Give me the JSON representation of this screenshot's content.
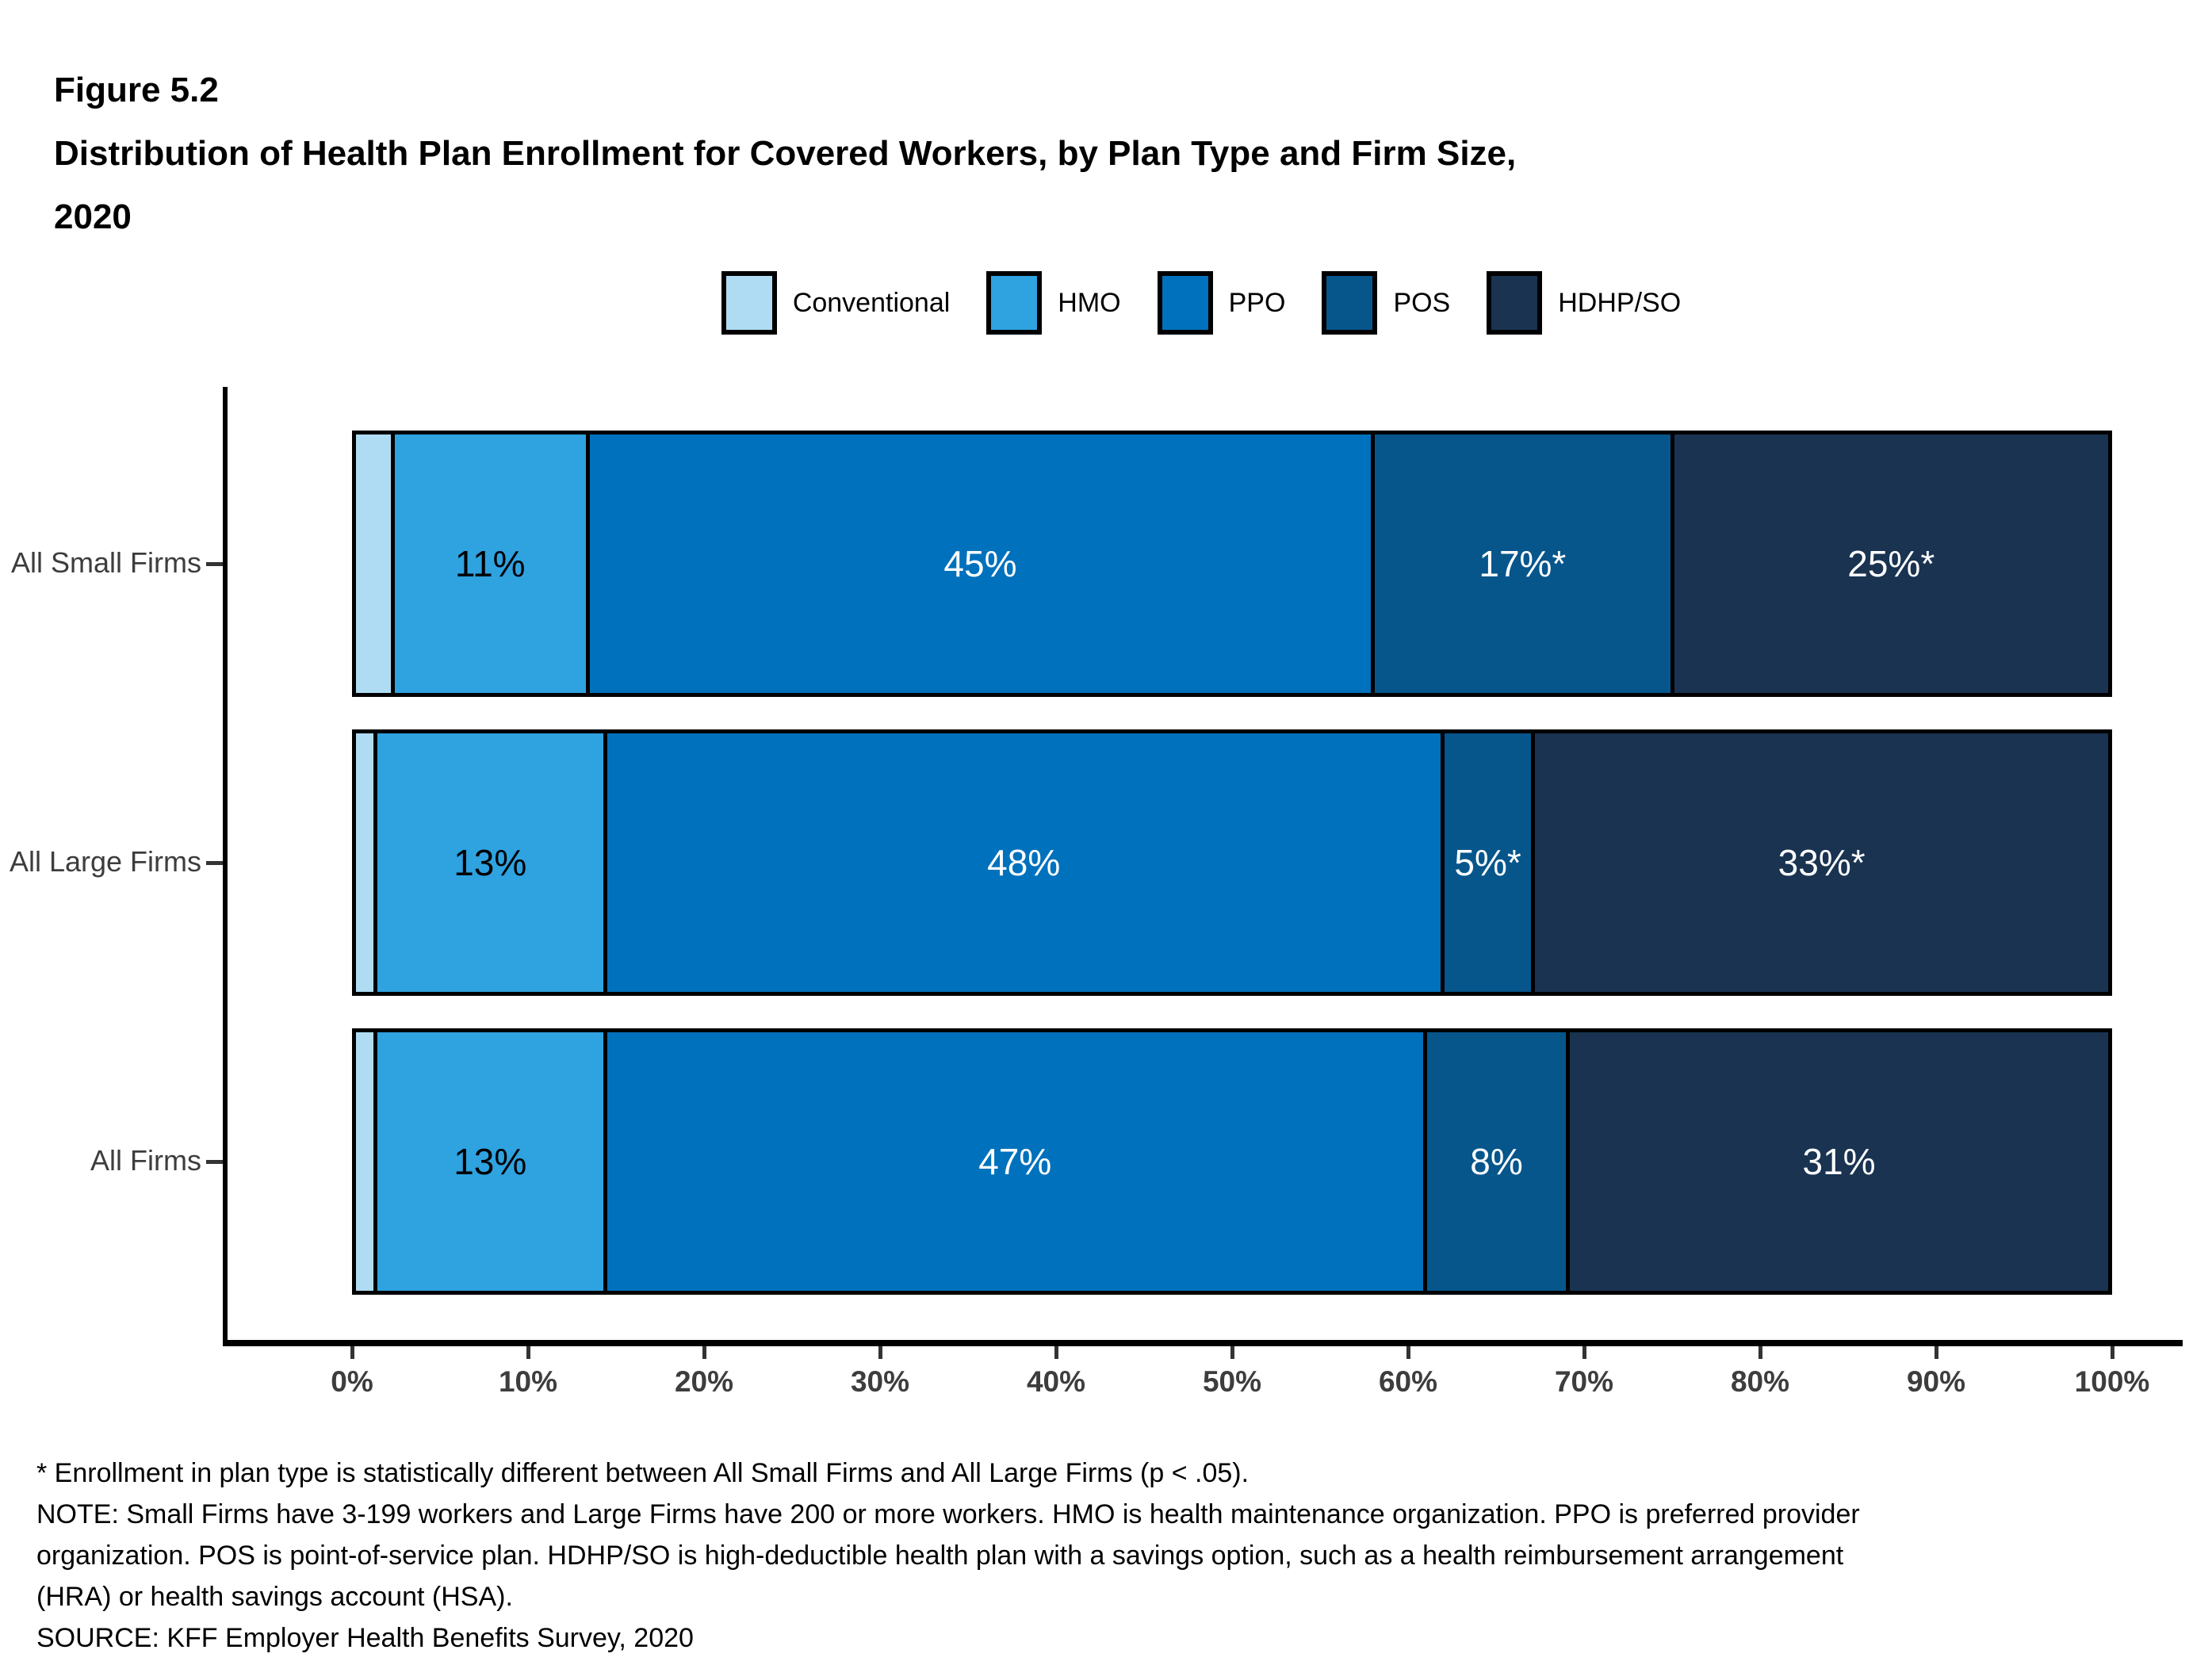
{
  "header": {
    "figure_label": "Figure 5.2",
    "title_lines": [
      "Distribution of Health Plan Enrollment for Covered Workers, by Plan Type and Firm Size,",
      "2020"
    ]
  },
  "legend": {
    "items": [
      {
        "label": "Conventional",
        "color": "#AFDCF2"
      },
      {
        "label": "HMO",
        "color": "#2FA2E0"
      },
      {
        "label": "PPO",
        "color": "#0071BC"
      },
      {
        "label": "POS",
        "color": "#06568C"
      },
      {
        "label": "HDHP/SO",
        "color": "#193351"
      }
    ]
  },
  "chart_data": {
    "type": "bar",
    "orientation": "horizontal",
    "stacked": true,
    "grid": false,
    "legend_position": "top",
    "categories": [
      "All Small Firms",
      "All Large Firms",
      "All Firms"
    ],
    "series": [
      {
        "name": "Conventional",
        "color": "#AFDCF2",
        "label_color": "#000000",
        "values": [
          2,
          1,
          1
        ],
        "labels": [
          "",
          "",
          ""
        ]
      },
      {
        "name": "HMO",
        "color": "#2FA2E0",
        "label_color": "#000000",
        "values": [
          11,
          13,
          13
        ],
        "labels": [
          "11%",
          "13%",
          "13%"
        ]
      },
      {
        "name": "PPO",
        "color": "#0071BC",
        "label_color": "#ffffff",
        "values": [
          45,
          48,
          47
        ],
        "labels": [
          "45%",
          "48%",
          "47%"
        ]
      },
      {
        "name": "POS",
        "color": "#06568C",
        "label_color": "#ffffff",
        "values": [
          17,
          5,
          8
        ],
        "labels": [
          "17%*",
          "5%*",
          "8%"
        ]
      },
      {
        "name": "HDHP/SO",
        "color": "#193351",
        "label_color": "#ffffff",
        "values": [
          25,
          33,
          31
        ],
        "labels": [
          "25%*",
          "33%*",
          "31%"
        ]
      }
    ],
    "x_axis": {
      "ticks": [
        "0%",
        "10%",
        "20%",
        "30%",
        "40%",
        "50%",
        "60%",
        "70%",
        "80%",
        "90%",
        "100%"
      ],
      "range": [
        0,
        100
      ]
    }
  },
  "footnotes": {
    "lines": [
      "* Enrollment in plan type is statistically different between All Small Firms and All Large Firms (p < .05).",
      "NOTE: Small Firms have 3-199 workers and Large Firms have 200 or more workers. HMO is health maintenance organization. PPO is preferred provider",
      "organization. POS is point-of-service plan. HDHP/SO is high-deductible health plan with a savings option, such as a health reimbursement arrangement",
      "(HRA) or health savings account (HSA).",
      "SOURCE: KFF Employer Health Benefits Survey, 2020"
    ]
  }
}
